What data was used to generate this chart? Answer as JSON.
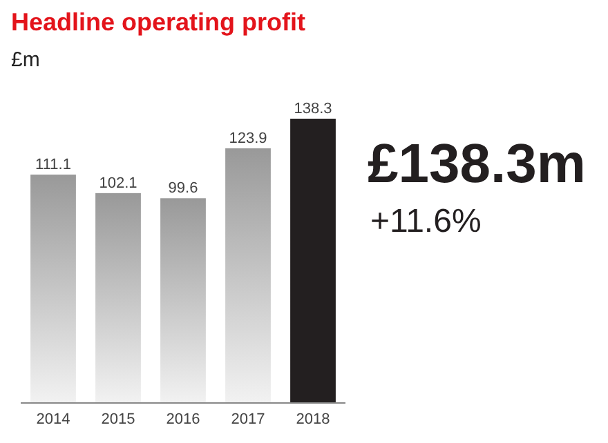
{
  "chart_data": {
    "type": "bar",
    "title": "Headline operating profit",
    "subtitle": "£m",
    "categories": [
      "2014",
      "2015",
      "2016",
      "2017",
      "2018"
    ],
    "values": [
      111.1,
      102.1,
      99.6,
      123.9,
      138.3
    ],
    "colors": [
      "#999999",
      "#999999",
      "#999999",
      "#999999",
      "#231f20"
    ],
    "data_labels": true,
    "annotations": [
      "£138.3m",
      "+11.6%"
    ]
  }
}
